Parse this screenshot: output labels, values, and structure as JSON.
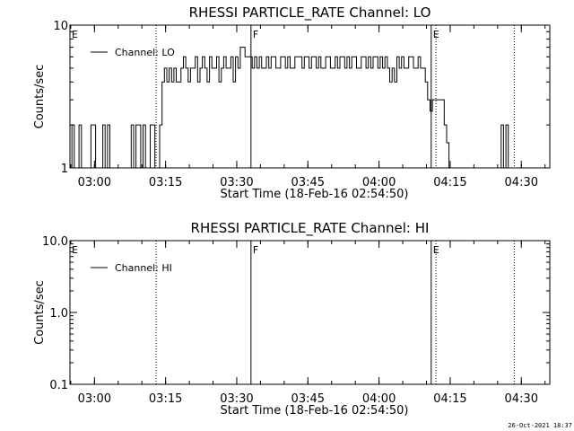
{
  "footer_timestamp": "26-Oct-2021 18:37",
  "chart_data": [
    {
      "type": "line",
      "title": "RHESSI PARTICLE_RATE Channel: LO",
      "xlabel": "Start Time (18-Feb-16 02:54:50)",
      "ylabel": "Counts/sec",
      "yscale": "log",
      "ylim": [
        1,
        10
      ],
      "yticks": [
        "1",
        "10"
      ],
      "xlim": [
        "02:54:50",
        "04:36:00"
      ],
      "xticks": [
        "03:00",
        "03:15",
        "03:30",
        "03:45",
        "04:00",
        "04:15",
        "04:30"
      ],
      "legend": "top-left",
      "series": [
        {
          "name": "Channel: LO",
          "x": [
            "02:55:00",
            "02:55:30",
            "02:56:00",
            "02:56:30",
            "02:57:00",
            "02:57:30",
            "02:58:00",
            "02:58:30",
            "02:59:00",
            "02:59:30",
            "03:00:00",
            "03:00:30",
            "03:01:00",
            "03:01:30",
            "03:02:00",
            "03:02:30",
            "03:03:00",
            "03:03:30",
            "03:04:00",
            "03:04:30",
            "03:05:00",
            "03:05:30",
            "03:06:00",
            "03:06:30",
            "03:07:00",
            "03:07:30",
            "03:08:00",
            "03:08:30",
            "03:09:00",
            "03:09:30",
            "03:10:00",
            "03:10:30",
            "03:11:00",
            "03:11:30",
            "03:12:00",
            "03:12:30",
            "03:13:00",
            "03:13:30",
            "03:14:00",
            "03:14:30",
            "03:15:00",
            "03:15:30",
            "03:16:00",
            "03:16:30",
            "03:17:00",
            "03:17:30",
            "03:18:00",
            "03:18:30",
            "03:19:00",
            "03:19:30",
            "03:20:00",
            "03:20:30",
            "03:21:00",
            "03:21:30",
            "03:22:00",
            "03:22:30",
            "03:23:00",
            "03:23:30",
            "03:24:00",
            "03:24:30",
            "03:25:00",
            "03:25:30",
            "03:26:00",
            "03:26:30",
            "03:27:00",
            "03:27:30",
            "03:28:00",
            "03:28:30",
            "03:29:00",
            "03:29:30",
            "03:30:00",
            "03:30:30",
            "03:31:00",
            "03:31:30",
            "03:32:00",
            "03:32:30",
            "03:33:00",
            "03:33:30",
            "03:34:00",
            "03:34:30",
            "03:35:00",
            "03:35:30",
            "03:36:00",
            "03:36:30",
            "03:37:00",
            "03:37:30",
            "03:38:00",
            "03:38:30",
            "03:39:00",
            "03:39:30",
            "03:40:00",
            "03:40:30",
            "03:41:00",
            "03:41:30",
            "03:42:00",
            "03:42:30",
            "03:43:00",
            "03:43:30",
            "03:44:00",
            "03:44:30",
            "03:45:00",
            "03:45:30",
            "03:46:00",
            "03:46:30",
            "03:47:00",
            "03:47:30",
            "03:48:00",
            "03:48:30",
            "03:49:00",
            "03:49:30",
            "03:50:00",
            "03:50:30",
            "03:51:00",
            "03:51:30",
            "03:52:00",
            "03:52:30",
            "03:53:00",
            "03:53:30",
            "03:54:00",
            "03:54:30",
            "03:55:00",
            "03:55:30",
            "03:56:00",
            "03:56:30",
            "03:57:00",
            "03:57:30",
            "03:58:00",
            "03:58:30",
            "03:59:00",
            "03:59:30",
            "04:00:00",
            "04:00:30",
            "04:01:00",
            "04:01:30",
            "04:02:00",
            "04:02:30",
            "04:03:00",
            "04:03:30",
            "04:04:00",
            "04:04:30",
            "04:05:00",
            "04:05:30",
            "04:06:00",
            "04:06:30",
            "04:07:00",
            "04:07:30",
            "04:08:00",
            "04:08:30",
            "04:09:00",
            "04:09:30",
            "04:10:00",
            "04:10:30",
            "04:11:00",
            "04:11:30",
            "04:12:00",
            "04:12:30",
            "04:13:00",
            "04:13:30",
            "04:14:00",
            "04:14:30",
            "04:15:00",
            "04:15:30",
            "04:16:00",
            "04:16:30",
            "04:17:00",
            "04:17:30",
            "04:18:00",
            "04:18:30",
            "04:19:00",
            "04:19:30",
            "04:20:00",
            "04:20:30",
            "04:21:00",
            "04:21:30",
            "04:22:00",
            "04:22:30",
            "04:23:00",
            "04:23:30",
            "04:24:00",
            "04:24:30",
            "04:25:00",
            "04:25:30",
            "04:26:00",
            "04:26:30",
            "04:27:00",
            "04:27:30"
          ],
          "y": [
            1,
            2,
            1,
            1,
            2,
            1,
            1,
            1,
            1,
            2,
            2,
            1,
            1,
            1,
            2,
            1,
            2,
            1,
            1,
            1,
            1,
            1,
            1,
            1,
            1,
            1,
            2,
            1,
            2,
            2,
            1,
            2,
            1,
            1,
            2,
            2,
            1,
            1,
            2,
            4,
            5,
            4,
            5,
            4,
            5,
            4,
            4,
            5,
            6,
            5,
            4,
            5,
            5,
            6,
            4,
            5,
            6,
            5,
            4,
            6,
            5,
            5,
            6,
            4,
            5,
            6,
            5,
            5,
            6,
            4,
            6,
            5,
            7,
            7,
            6,
            6,
            6,
            5,
            6,
            5,
            6,
            5,
            5,
            6,
            5,
            6,
            6,
            5,
            5,
            6,
            6,
            5,
            6,
            5,
            5,
            6,
            6,
            6,
            5,
            6,
            6,
            5,
            6,
            6,
            5,
            6,
            5,
            5,
            6,
            6,
            5,
            5,
            6,
            5,
            6,
            6,
            5,
            6,
            5,
            6,
            6,
            5,
            5,
            6,
            6,
            5,
            6,
            5,
            6,
            6,
            5,
            6,
            5,
            6,
            5,
            4,
            5,
            4,
            6,
            5,
            6,
            5,
            5,
            6,
            6,
            5,
            5,
            6,
            5,
            5,
            4,
            3,
            2.5,
            3,
            3,
            3,
            3,
            3,
            2,
            1.5,
            1,
            1,
            1,
            1,
            1,
            1,
            1,
            1,
            1,
            1,
            1,
            1,
            1,
            1,
            1,
            1,
            1,
            1,
            1,
            1,
            1,
            1,
            2,
            1,
            2,
            1
          ]
        }
      ],
      "annotations": [
        {
          "label": "E",
          "time": "02:54:50",
          "style": "solid"
        },
        {
          "label": "",
          "time": "03:13:00",
          "style": "dotted"
        },
        {
          "label": "F",
          "time": "03:33:00",
          "style": "solid"
        },
        {
          "label": "E",
          "time": "04:11:00",
          "style": "solid"
        },
        {
          "label": "",
          "time": "04:12:00",
          "style": "dotted"
        },
        {
          "label": "",
          "time": "04:28:30",
          "style": "dotted"
        }
      ]
    },
    {
      "type": "line",
      "title": "RHESSI PARTICLE_RATE Channel: HI",
      "xlabel": "Start Time (18-Feb-16 02:54:50)",
      "ylabel": "Counts/sec",
      "yscale": "log",
      "ylim": [
        0.1,
        10.0
      ],
      "yticks": [
        "0.1",
        "1.0",
        "10.0"
      ],
      "xlim": [
        "02:54:50",
        "04:36:00"
      ],
      "xticks": [
        "03:00",
        "03:15",
        "03:30",
        "03:45",
        "04:00",
        "04:15",
        "04:30"
      ],
      "legend": "top-left",
      "series": [
        {
          "name": "Channel: HI",
          "x": [],
          "y": []
        }
      ],
      "annotations": [
        {
          "label": "E",
          "time": "02:54:50",
          "style": "solid"
        },
        {
          "label": "",
          "time": "03:13:00",
          "style": "dotted"
        },
        {
          "label": "F",
          "time": "03:33:00",
          "style": "solid"
        },
        {
          "label": "E",
          "time": "04:11:00",
          "style": "solid"
        },
        {
          "label": "",
          "time": "04:12:00",
          "style": "dotted"
        },
        {
          "label": "",
          "time": "04:28:30",
          "style": "dotted"
        }
      ]
    }
  ]
}
